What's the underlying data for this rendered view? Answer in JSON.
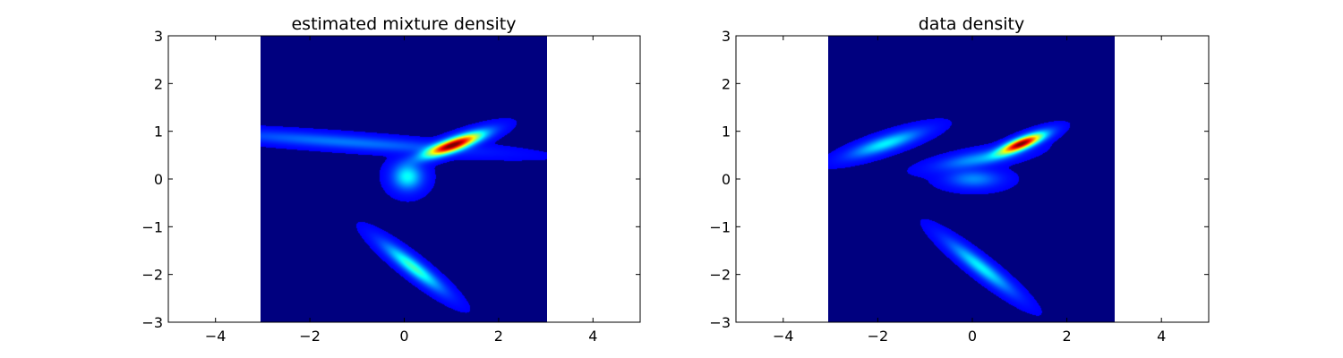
{
  "chart_data": [
    {
      "type": "heatmap",
      "title": "estimated mixture density",
      "xlabel": "",
      "ylabel": "",
      "xlim": [
        -5,
        5
      ],
      "ylim": [
        -3,
        3
      ],
      "xticks": [
        "−4",
        "−2",
        "0",
        "2",
        "4"
      ],
      "xtick_values": [
        -4,
        -2,
        0,
        2,
        4
      ],
      "yticks": [
        "−3",
        "−2",
        "−1",
        "0",
        "1",
        "2",
        "3"
      ],
      "ytick_values": [
        -3,
        -2,
        -1,
        0,
        1,
        2,
        3
      ],
      "heatmap_extent": {
        "x": [
          -3,
          3
        ],
        "y": [
          -3,
          3
        ]
      },
      "colormap": "jet",
      "background_color": "#00007f",
      "grid": false,
      "legend": "none",
      "density_components": [
        {
          "name": "blob-upper-right",
          "cx": 1.05,
          "cy": 0.72,
          "sx": 0.42,
          "sy": 0.09,
          "angle_deg": 20,
          "weight": 1.0
        },
        {
          "name": "streak-left",
          "cx": -1.3,
          "cy": 0.78,
          "sx": 1.7,
          "sy": 0.09,
          "angle_deg": -4,
          "weight": 0.14
        },
        {
          "name": "blob-center",
          "cx": 0.08,
          "cy": 0.05,
          "sx": 0.2,
          "sy": 0.18,
          "angle_deg": 0,
          "weight": 0.3
        },
        {
          "name": "blob-lower",
          "cx": 0.2,
          "cy": -1.85,
          "sx": 0.5,
          "sy": 0.1,
          "angle_deg": -38,
          "weight": 0.36
        }
      ]
    },
    {
      "type": "heatmap",
      "title": "data density",
      "xlabel": "",
      "ylabel": "",
      "xlim": [
        -5,
        5
      ],
      "ylim": [
        -3,
        3
      ],
      "xticks": [
        "−4",
        "−2",
        "0",
        "2",
        "4"
      ],
      "xtick_values": [
        -4,
        -2,
        0,
        2,
        4
      ],
      "yticks": [
        "−3",
        "−2",
        "−1",
        "0",
        "1",
        "2",
        "3"
      ],
      "ytick_values": [
        -3,
        -2,
        -1,
        0,
        1,
        2,
        3
      ],
      "heatmap_extent": {
        "x": [
          -3,
          3
        ],
        "y": [
          -3,
          3
        ]
      },
      "colormap": "jet",
      "background_color": "#00007f",
      "grid": false,
      "legend": "none",
      "density_components": [
        {
          "name": "blob-upper-right",
          "cx": 1.05,
          "cy": 0.74,
          "sx": 0.33,
          "sy": 0.08,
          "angle_deg": 22,
          "weight": 1.0
        },
        {
          "name": "blob-left",
          "cx": -1.8,
          "cy": 0.74,
          "sx": 0.5,
          "sy": 0.1,
          "angle_deg": 18,
          "weight": 0.28
        },
        {
          "name": "blob-center-upper",
          "cx": 0.15,
          "cy": 0.42,
          "sx": 0.55,
          "sy": 0.1,
          "angle_deg": 10,
          "weight": 0.18
        },
        {
          "name": "blob-center-lower",
          "cx": 0.05,
          "cy": 0.0,
          "sx": 0.35,
          "sy": 0.12,
          "angle_deg": 0,
          "weight": 0.16
        },
        {
          "name": "blob-lower",
          "cx": 0.2,
          "cy": -1.85,
          "sx": 0.55,
          "sy": 0.1,
          "angle_deg": -38,
          "weight": 0.28
        }
      ]
    }
  ]
}
